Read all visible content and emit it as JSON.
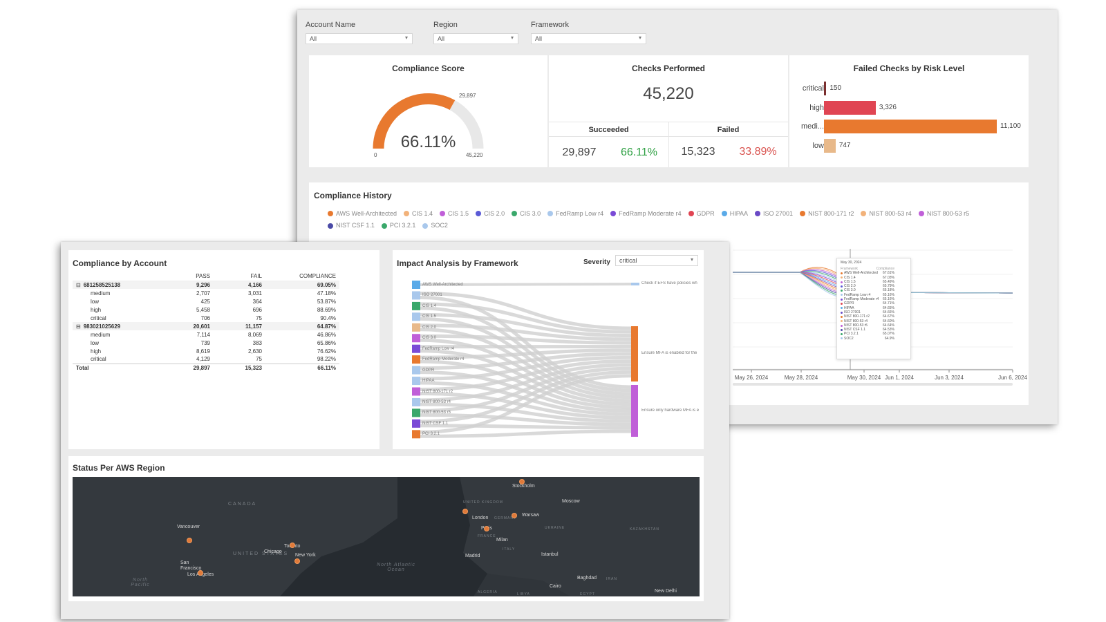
{
  "filters": [
    {
      "label": "Account Name",
      "value": "All"
    },
    {
      "label": "Region",
      "value": "All"
    },
    {
      "label": "Framework",
      "value": "All"
    }
  ],
  "compliance_score": {
    "title": "Compliance Score",
    "value_text": "66.11%",
    "fraction": 0.6611,
    "min_label": "0",
    "max_label": "45,220",
    "passed_label": "29,897"
  },
  "checks": {
    "title": "Checks Performed",
    "total": "45,220",
    "succeeded_label": "Succeeded",
    "failed_label": "Failed",
    "succeeded_count": "29,897",
    "succeeded_pct": "66.11%",
    "failed_count": "15,323",
    "failed_pct": "33.89%"
  },
  "risk": {
    "title": "Failed Checks by Risk Level",
    "rows": [
      {
        "label": "critical",
        "value": 150,
        "value_text": "150",
        "color": "#7a2e2e"
      },
      {
        "label": "high",
        "value": 3326,
        "value_text": "3,326",
        "color": "#e04553"
      },
      {
        "label": "medi...",
        "value": 11100,
        "value_text": "11,100",
        "color": "#e8792f"
      },
      {
        "label": "low",
        "value": 747,
        "value_text": "747",
        "color": "#e8b98a"
      }
    ],
    "max": 11100
  },
  "history": {
    "title": "Compliance History",
    "legend": [
      {
        "name": "AWS Well-Architected",
        "color": "#e8792f"
      },
      {
        "name": "CIS 1.4",
        "color": "#f2b27a"
      },
      {
        "name": "CIS 1.5",
        "color": "#c05fd8"
      },
      {
        "name": "CIS 2.0",
        "color": "#5a5ad6"
      },
      {
        "name": "CIS 3.0",
        "color": "#3aa86b"
      },
      {
        "name": "FedRamp Low r4",
        "color": "#a9c8ec"
      },
      {
        "name": "FedRamp Moderate r4",
        "color": "#7a4ad6"
      },
      {
        "name": "GDPR",
        "color": "#e04553"
      },
      {
        "name": "HIPAA",
        "color": "#5aaae8"
      },
      {
        "name": "ISO 27001",
        "color": "#6a4ac6"
      },
      {
        "name": "NIST 800-171 r2",
        "color": "#e8792f"
      },
      {
        "name": "NIST 800-53 r4",
        "color": "#f2b27a"
      },
      {
        "name": "NIST 800-53 r5",
        "color": "#c05fd8"
      },
      {
        "name": "NIST CSF 1.1",
        "color": "#4a4aa6"
      },
      {
        "name": "PCI 3.2.1",
        "color": "#3aa86b"
      },
      {
        "name": "SOC2",
        "color": "#a9c8ec"
      }
    ],
    "x_ticks": [
      "May 26, 2024",
      "May 28, 2024",
      "May 30, 2024",
      "Jun 1, 2024",
      "Jun 3, 2024",
      "Jun 6, 2024"
    ],
    "tooltip": {
      "date": "May 30, 2024",
      "col1": "Framework",
      "col2": "Compliance",
      "rows": [
        {
          "name": "AWS Well-Architected",
          "value": "67.61%",
          "color": "#e8792f"
        },
        {
          "name": "CIS 1.4",
          "value": "67.03%",
          "color": "#f2b27a"
        },
        {
          "name": "CIS 1.5",
          "value": "65.49%",
          "color": "#c05fd8"
        },
        {
          "name": "CIS 2.0",
          "value": "65.79%",
          "color": "#5a5ad6"
        },
        {
          "name": "CIS 3.0",
          "value": "65.18%",
          "color": "#3aa86b"
        },
        {
          "name": "FedRamp Low r4",
          "value": "65.16%",
          "color": "#a9c8ec"
        },
        {
          "name": "FedRamp Moderate r4",
          "value": "65.16%",
          "color": "#7a4ad6"
        },
        {
          "name": "GDPR",
          "value": "64.71%",
          "color": "#e04553"
        },
        {
          "name": "HIPAA",
          "value": "64.65%",
          "color": "#5aaae8"
        },
        {
          "name": "ISO 27001",
          "value": "64.66%",
          "color": "#6a4ac6"
        },
        {
          "name": "NIST 800-171 r2",
          "value": "64.67%",
          "color": "#e8792f"
        },
        {
          "name": "NIST 800-53 r4",
          "value": "64.60%",
          "color": "#f2b27a"
        },
        {
          "name": "NIST 800-53 r5",
          "value": "64.64%",
          "color": "#c05fd8"
        },
        {
          "name": "NIST CSF 1.1",
          "value": "64.53%",
          "color": "#4a4aa6"
        },
        {
          "name": "PCI 3.2.1",
          "value": "65.07%",
          "color": "#3aa86b"
        },
        {
          "name": "SOC2",
          "value": "64.9%",
          "color": "#a9c8ec"
        }
      ]
    }
  },
  "account": {
    "title": "Compliance by Account",
    "headers": [
      "",
      "PASS",
      "FAIL",
      "COMPLIANCE"
    ],
    "groups": [
      {
        "id": "681258525138",
        "pass": "9,296",
        "fail": "4,166",
        "compliance": "69.05%",
        "rows": [
          {
            "name": "medium",
            "pass": "2,707",
            "fail": "3,031",
            "compliance": "47.18%"
          },
          {
            "name": "low",
            "pass": "425",
            "fail": "364",
            "compliance": "53.87%"
          },
          {
            "name": "high",
            "pass": "5,458",
            "fail": "696",
            "compliance": "88.69%"
          },
          {
            "name": "critical",
            "pass": "706",
            "fail": "75",
            "compliance": "90.4%"
          }
        ]
      },
      {
        "id": "983021025629",
        "pass": "20,601",
        "fail": "11,157",
        "compliance": "64.87%",
        "rows": [
          {
            "name": "medium",
            "pass": "7,114",
            "fail": "8,069",
            "compliance": "46.86%"
          },
          {
            "name": "low",
            "pass": "739",
            "fail": "383",
            "compliance": "65.86%"
          },
          {
            "name": "high",
            "pass": "8,619",
            "fail": "2,630",
            "compliance": "76.62%"
          },
          {
            "name": "critical",
            "pass": "4,129",
            "fail": "75",
            "compliance": "98.22%"
          }
        ]
      }
    ],
    "total": {
      "name": "Total",
      "pass": "29,897",
      "fail": "15,323",
      "compliance": "66.11%"
    }
  },
  "impact": {
    "title": "Impact Analysis by Framework",
    "severity_label": "Severity",
    "severity_value": "critical",
    "sources": [
      {
        "name": "AWS Well-Architected",
        "color": "#5aaae8"
      },
      {
        "name": "ISO 27001",
        "color": "#a9c8ec"
      },
      {
        "name": "CIS 1.4",
        "color": "#3aa86b"
      },
      {
        "name": "CIS 1.5",
        "color": "#a9c8ec"
      },
      {
        "name": "CIS 2.0",
        "color": "#e8b98a"
      },
      {
        "name": "CIS 3.0",
        "color": "#c05fd8"
      },
      {
        "name": "FedRamp Low r4",
        "color": "#7a4ad6"
      },
      {
        "name": "FedRamp Moderate r4",
        "color": "#e8792f"
      },
      {
        "name": "GDPR",
        "color": "#a9c8ec"
      },
      {
        "name": "HIPAA",
        "color": "#a9c8ec"
      },
      {
        "name": "NIST 800-171 r2",
        "color": "#c05fd8"
      },
      {
        "name": "NIST 800-53 r4",
        "color": "#a9c8ec"
      },
      {
        "name": "NIST 800-53 r5",
        "color": "#3aa86b"
      },
      {
        "name": "NIST CSF 1.1",
        "color": "#7a4ad6"
      },
      {
        "name": "PCI 3.2.1",
        "color": "#e8792f"
      }
    ],
    "targets": [
      {
        "name": "Check if EFS have policies wh",
        "color": "#a9c8ec"
      },
      {
        "name": "Ensure MFA is enabled for the",
        "color": "#e8792f"
      },
      {
        "name": "Ensure only hardware MFA is e",
        "color": "#c05fd8"
      }
    ]
  },
  "regions": {
    "title": "Status Per AWS Region",
    "cities": [
      "Vancouver",
      "San Francisco",
      "Los Angeles",
      "Chicago",
      "Toronto",
      "New York",
      "London",
      "Paris",
      "Stockholm",
      "Warsaw",
      "Moscow",
      "Milan",
      "Madrid",
      "Istanbul",
      "Baghdad",
      "Cairo",
      "New Delhi"
    ],
    "countries": [
      "CANADA",
      "UNITED STATES",
      "UNITED KINGDOM",
      "FRANCE",
      "GERMANY",
      "UKRAINE",
      "KAZAKHSTAN",
      "ITALY",
      "ALGERIA",
      "LIBYA",
      "EGYPT",
      "IRAN"
    ],
    "oceans": [
      "North Atlantic Ocean",
      "North Pacific"
    ]
  }
}
